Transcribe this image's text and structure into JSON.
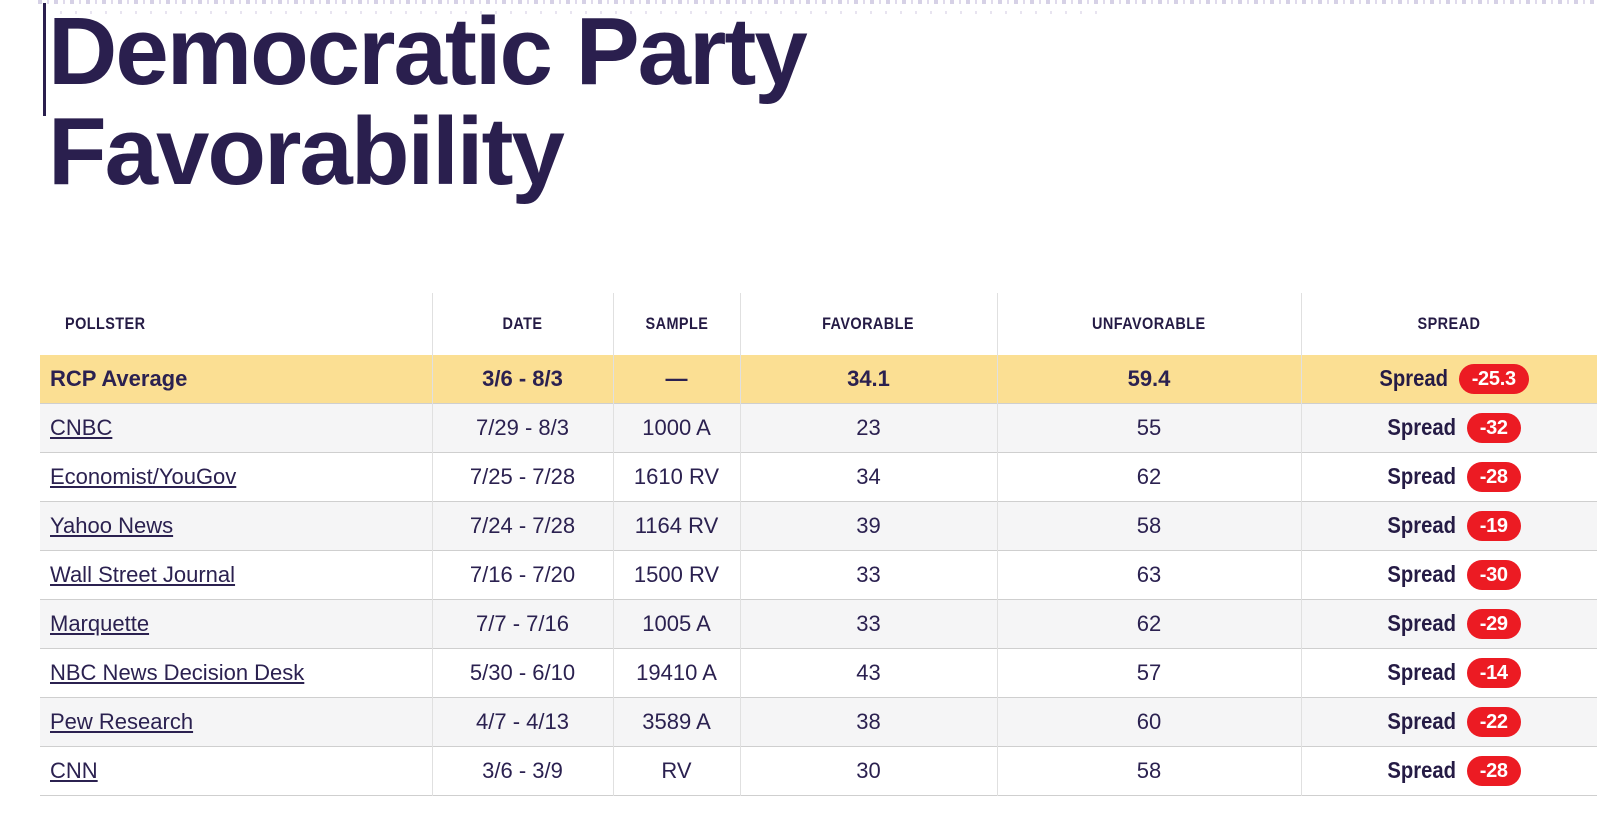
{
  "page": {
    "title_line1": "Democratic Party",
    "title_line2": "Favorability"
  },
  "table": {
    "columns": [
      "POLLSTER",
      "DATE",
      "SAMPLE",
      "FAVORABLE",
      "UNFAVORABLE",
      "SPREAD"
    ],
    "spread_label": "Spread",
    "average_row": {
      "pollster": "RCP Average",
      "date": "3/6 - 8/3",
      "sample": "—",
      "favorable": "34.1",
      "unfavorable": "59.4",
      "spread": "-25.3"
    },
    "rows": [
      {
        "pollster": "CNBC",
        "date": "7/29 - 8/3",
        "sample": "1000 A",
        "favorable": "23",
        "unfavorable": "55",
        "spread": "-32"
      },
      {
        "pollster": "Economist/YouGov",
        "date": "7/25 - 7/28",
        "sample": "1610 RV",
        "favorable": "34",
        "unfavorable": "62",
        "spread": "-28"
      },
      {
        "pollster": "Yahoo News",
        "date": "7/24 - 7/28",
        "sample": "1164 RV",
        "favorable": "39",
        "unfavorable": "58",
        "spread": "-19"
      },
      {
        "pollster": "Wall Street Journal",
        "date": "7/16 - 7/20",
        "sample": "1500 RV",
        "favorable": "33",
        "unfavorable": "63",
        "spread": "-30"
      },
      {
        "pollster": "Marquette",
        "date": "7/7 - 7/16",
        "sample": "1005 A",
        "favorable": "33",
        "unfavorable": "62",
        "spread": "-29"
      },
      {
        "pollster": "NBC News Decision Desk",
        "date": "5/30 - 6/10",
        "sample": "19410 A",
        "favorable": "43",
        "unfavorable": "57",
        "spread": "-14"
      },
      {
        "pollster": "Pew Research",
        "date": "4/7 - 4/13",
        "sample": "3589 A",
        "favorable": "38",
        "unfavorable": "60",
        "spread": "-22"
      },
      {
        "pollster": "CNN",
        "date": "3/6 - 3/9",
        "sample": "RV",
        "favorable": "30",
        "unfavorable": "58",
        "spread": "-28"
      }
    ]
  },
  "colors": {
    "title_text": "#2a1f4e",
    "highlight_yellow": "#fbdf93",
    "spread_red": "#ec1b23",
    "alt_row_gray": "#f5f5f6",
    "border_gray": "#cfcfcf"
  }
}
